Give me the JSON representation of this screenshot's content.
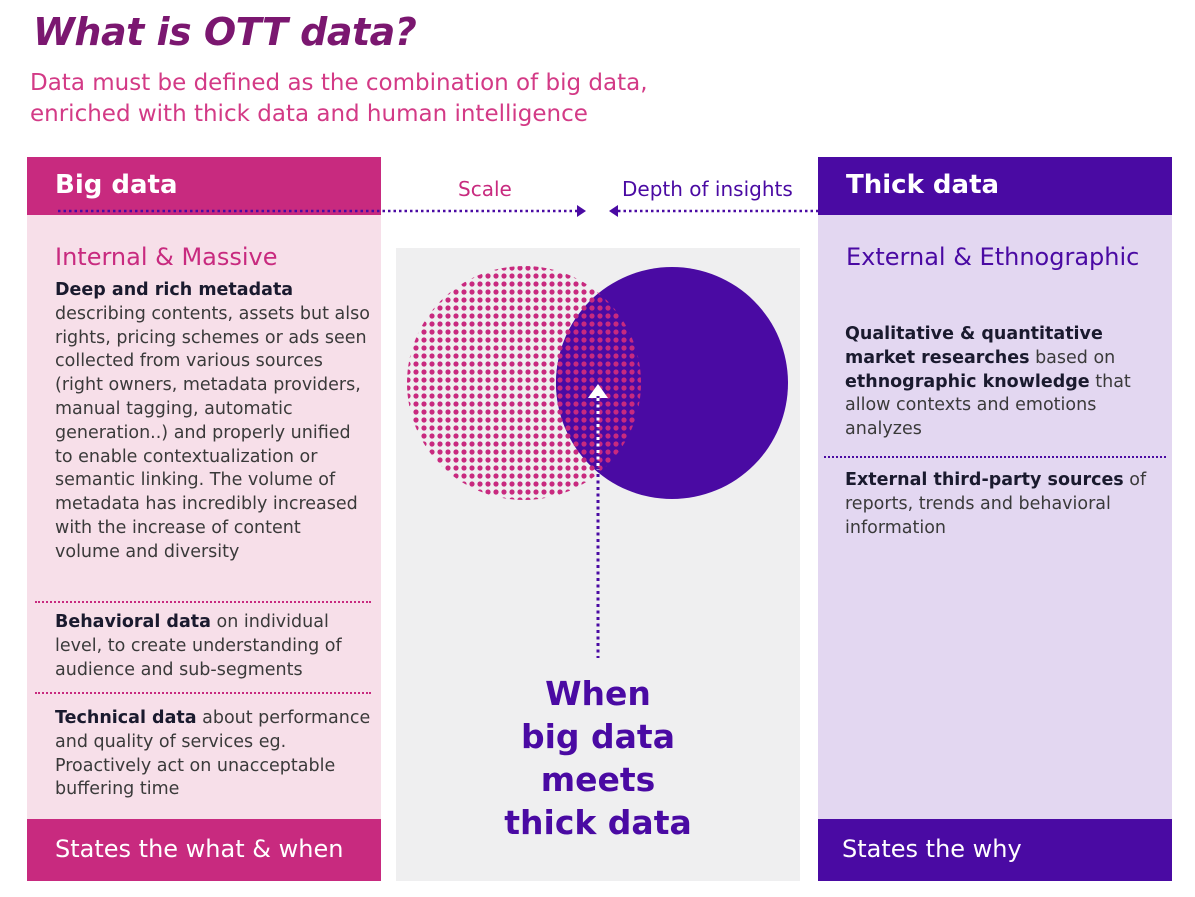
{
  "header": {
    "title": "What is OTT data?",
    "subtitle_line1": "Data must be defined as the combination of big data,",
    "subtitle_line2": "enriched with thick data and human intelligence"
  },
  "big_data": {
    "title": "Big data",
    "section_heading": "Internal & Massive",
    "p1_bold": "Deep and rich metadata",
    "p1_text": " describing contents, assets but also rights, pricing schemes or ads seen collected from various sources (right owners, metadata providers, manual tagging, automatic generation..) and properly unified to enable contextualization or semantic linking. The volume of metadata has incredibly increased with the increase of content volume and diversity",
    "p2_bold": "Behavioral data",
    "p2_text": " on individual level, to create understanding of audience and sub-segments",
    "p3_bold": "Technical data",
    "p3_text": " about performance and quality of services eg. Proactively act on unacceptable buffering time",
    "footer": "States the what & when"
  },
  "thick_data": {
    "title": "Thick data",
    "section_heading": "External & Ethnographic",
    "p1_bold_a": "Qualitative & quantitative market researches",
    "p1_text_a": " based on ",
    "p1_bold_b": "ethnographic knowledge",
    "p1_text_b": " that allow contexts and emotions analyzes",
    "p2_bold": "External third-party sources",
    "p2_text": " of reports, trends and behavioral information",
    "footer": "States the why"
  },
  "center": {
    "scale_label": "Scale",
    "depth_label": "Depth of insights",
    "caption_line1": "When",
    "caption_line2": "big data",
    "caption_line3": "meets",
    "caption_line4": "thick data"
  },
  "colors": {
    "magenta": "#c82a7f",
    "purple": "#4a0aa3",
    "title": "#7b1770",
    "subtitle": "#d33a86"
  }
}
